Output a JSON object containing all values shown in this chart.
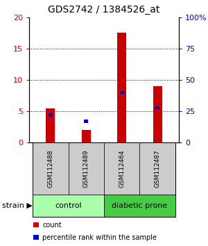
{
  "title": "GDS2742 / 1384526_at",
  "samples": [
    "GSM112488",
    "GSM112489",
    "GSM112464",
    "GSM112487"
  ],
  "count_values": [
    5.5,
    2.0,
    17.5,
    9.0
  ],
  "percentile_values": [
    22,
    17,
    40,
    28
  ],
  "groups": [
    "control",
    "control",
    "diabetic prone",
    "diabetic prone"
  ],
  "ylim_left": [
    0,
    20
  ],
  "ylim_right": [
    0,
    100
  ],
  "yticks_left": [
    0,
    5,
    10,
    15,
    20
  ],
  "yticks_right": [
    0,
    25,
    50,
    75,
    100
  ],
  "bar_color_count": "#CC0000",
  "bar_color_pct": "#0000CC",
  "bar_width": 0.25,
  "left_tick_color": "#CC0000",
  "right_tick_color": "#0000CC",
  "bg_color": "#FFFFFF",
  "sample_box_color": "#CCCCCC",
  "control_color_light": "#AAFFAA",
  "diabetic_color": "#44CC44",
  "legend_count_label": "count",
  "legend_pct_label": "percentile rank within the sample",
  "strain_label": "strain",
  "title_fontsize": 10,
  "tick_fontsize": 8,
  "sample_fontsize": 6.5,
  "group_fontsize": 8,
  "legend_fontsize": 7
}
